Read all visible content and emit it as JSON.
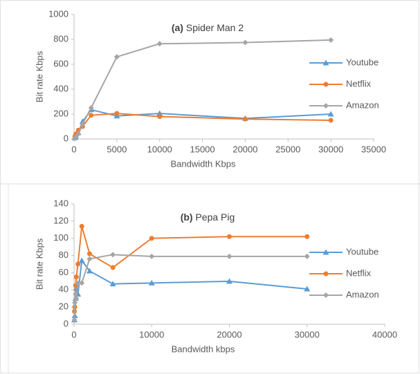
{
  "chart_data": [
    {
      "type": "line",
      "label": "(a)",
      "title": "Spider Man 2",
      "x_label": "Bandwidth Kbps",
      "y_label": "Bit rate Kbps",
      "xlim": [
        0,
        35000
      ],
      "xticks": [
        0,
        5000,
        10000,
        15000,
        20000,
        25000,
        30000,
        35000
      ],
      "ylim": [
        0,
        1000
      ],
      "yticks": [
        0,
        200,
        400,
        600,
        800,
        1000
      ],
      "x": [
        100,
        200,
        500,
        1000,
        2000,
        5000,
        10000,
        20000,
        30000
      ],
      "series": [
        {
          "name": "Youtube",
          "color": "#5b9bd5",
          "marker": "triangle",
          "values": [
            10,
            20,
            50,
            140,
            235,
            185,
            205,
            165,
            200
          ]
        },
        {
          "name": "Netflix",
          "color": "#ed7d31",
          "marker": "circle",
          "values": [
            20,
            40,
            70,
            100,
            190,
            205,
            180,
            160,
            150
          ]
        },
        {
          "name": "Amazon",
          "color": "#a5a5a5",
          "marker": "diamond",
          "values": [
            5,
            15,
            40,
            120,
            250,
            660,
            765,
            775,
            795
          ]
        }
      ]
    },
    {
      "type": "line",
      "label": "(b)",
      "title": "Pepa Pig",
      "x_label": "Bandwidth kbps",
      "y_label": "Bit rate Kbps",
      "xlim": [
        0,
        40000
      ],
      "xticks": [
        0,
        10000,
        20000,
        30000,
        40000
      ],
      "ylim": [
        0,
        140
      ],
      "yticks": [
        0,
        20,
        40,
        60,
        80,
        100,
        120,
        140
      ],
      "x": [
        50,
        100,
        200,
        300,
        500,
        1000,
        2000,
        5000,
        10000,
        20000,
        30000
      ],
      "series": [
        {
          "name": "Youtube",
          "color": "#5b9bd5",
          "marker": "triangle",
          "values": [
            5,
            10,
            30,
            42,
            35,
            74,
            62,
            47,
            48,
            50,
            41
          ]
        },
        {
          "name": "Netflix",
          "color": "#ed7d31",
          "marker": "circle",
          "values": [
            15,
            20,
            45,
            55,
            70,
            114,
            82,
            66,
            100,
            102,
            102
          ]
        },
        {
          "name": "Amazon",
          "color": "#a5a5a5",
          "marker": "diamond",
          "values": [
            5,
            25,
            35,
            30,
            48,
            48,
            76,
            81,
            79,
            79,
            79
          ]
        }
      ]
    }
  ]
}
